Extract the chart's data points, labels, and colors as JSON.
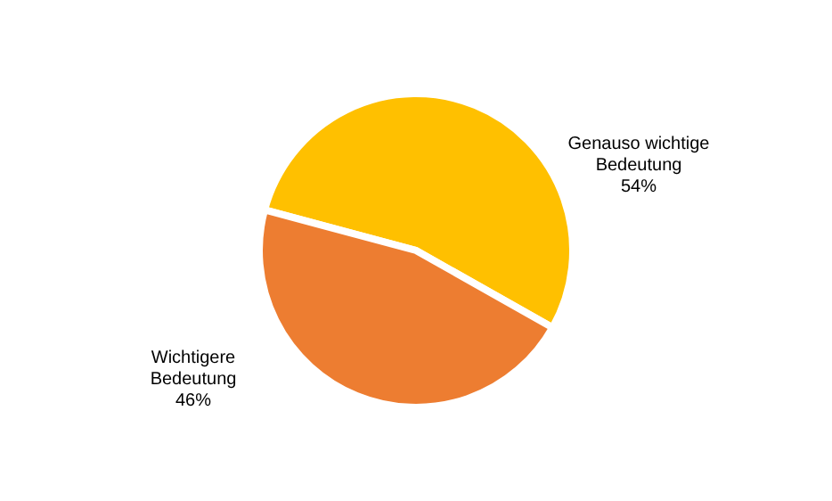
{
  "chart_data": {
    "type": "pie",
    "categories": [
      "Genauso wichtige Bedeutung",
      "Wichtigere Bedeutung"
    ],
    "values": [
      54,
      46
    ],
    "colors": [
      "#ffc000",
      "#ed7d31"
    ],
    "value_labels": [
      "54%",
      "46%"
    ]
  }
}
